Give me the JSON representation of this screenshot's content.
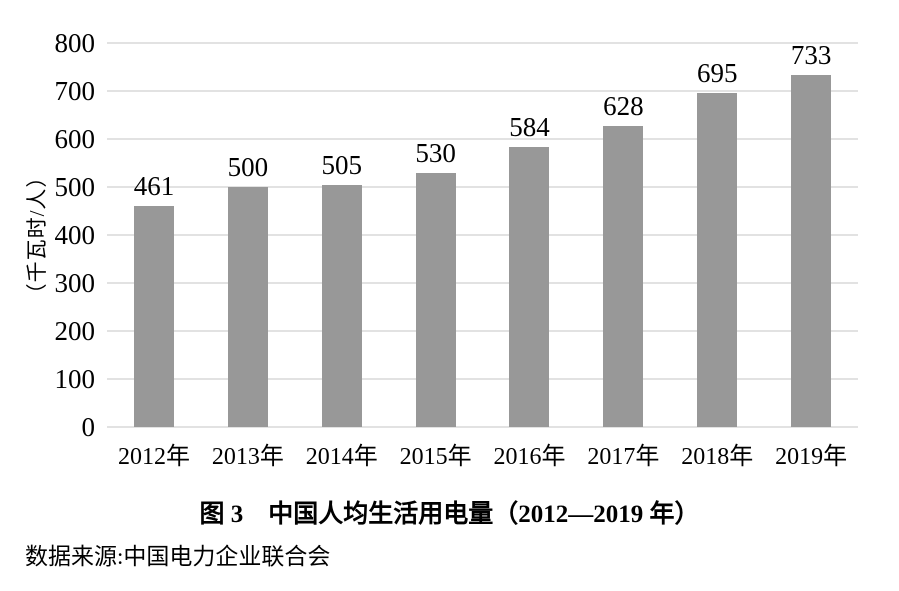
{
  "chart_data": {
    "type": "bar",
    "title": "图 3　中国人均生活用电量（2012—2019 年）",
    "source": "数据来源:中国电力企业联合会",
    "ylabel": "（千瓦时/人）",
    "xlabel": "",
    "categories": [
      "2012年",
      "2013年",
      "2014年",
      "2015年",
      "2016年",
      "2017年",
      "2018年",
      "2019年"
    ],
    "values": [
      461,
      500,
      505,
      530,
      584,
      628,
      695,
      733
    ],
    "ylim": [
      0,
      800
    ],
    "yticks": [
      0,
      100,
      200,
      300,
      400,
      500,
      600,
      700,
      800
    ],
    "grid": true,
    "legend": "none",
    "bar_color": "#989898",
    "gridline_color": "#e2e2e2",
    "text_color": "#000000"
  }
}
